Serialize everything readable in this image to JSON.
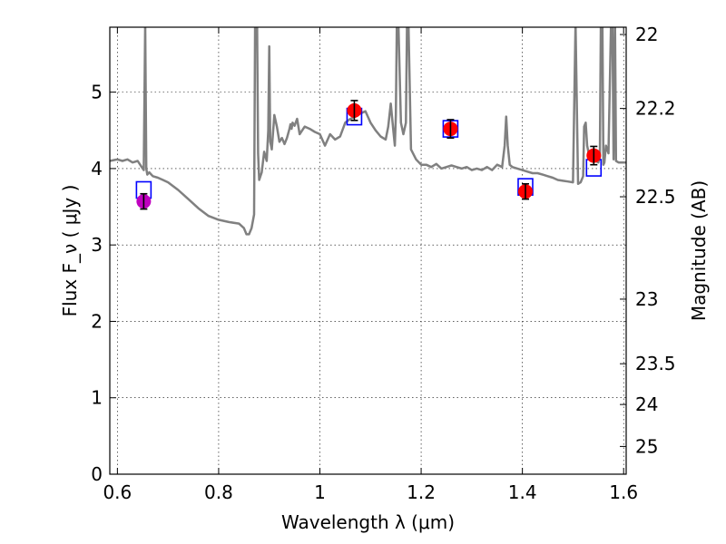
{
  "chart_data": {
    "type": "scatter",
    "xlabel": "Wavelength  λ (μm)",
    "ylabel": "Flux  F_ν  ( μJy )",
    "y2label": "Magnitude (AB)",
    "xlim": [
      0.585,
      1.605
    ],
    "ylim": [
      0,
      5.85
    ],
    "grid": true,
    "x_ticks": [
      0.6,
      0.8,
      1.0,
      1.2,
      1.4,
      1.6
    ],
    "x_tick_labels": [
      "0.6",
      "0.8",
      "1",
      "1.2",
      "1.4",
      "1.6"
    ],
    "y_ticks": [
      0,
      1,
      2,
      3,
      4,
      5
    ],
    "y_tick_labels": [
      "0",
      "1",
      "2",
      "3",
      "4",
      "5"
    ],
    "y2_ticks": [
      22,
      22.2,
      22.5,
      23,
      23.5,
      24,
      25
    ],
    "y2_tick_labels": [
      "22",
      "22.2",
      "22.5",
      "23",
      "23.5",
      "24",
      "25"
    ],
    "colors": {
      "spectrum": "#808080",
      "model_box": "#0000ff",
      "detection": "#ff0000",
      "first_point": "#bf00bf",
      "errorbar": "#000000",
      "grid": "#000000"
    },
    "series": [
      {
        "type": "line",
        "x": [
          0.585,
          0.6,
          0.61,
          0.62,
          0.63,
          0.64,
          0.648,
          0.652,
          0.655,
          0.657,
          0.659,
          0.663,
          0.67,
          0.68,
          0.69,
          0.7,
          0.72,
          0.74,
          0.76,
          0.78,
          0.8,
          0.82,
          0.84,
          0.85,
          0.855,
          0.86,
          0.865,
          0.87,
          0.872,
          0.874,
          0.876,
          0.878,
          0.88,
          0.885,
          0.89,
          0.895,
          0.898,
          0.9,
          0.902,
          0.905,
          0.91,
          0.915,
          0.92,
          0.925,
          0.93,
          0.935,
          0.94,
          0.942,
          0.944,
          0.946,
          0.95,
          0.955,
          0.96,
          0.97,
          0.98,
          0.99,
          1.0,
          1.01,
          1.02,
          1.03,
          1.04,
          1.05,
          1.06,
          1.07,
          1.08,
          1.09,
          1.1,
          1.11,
          1.12,
          1.13,
          1.135,
          1.14,
          1.145,
          1.148,
          1.15,
          1.152,
          1.155,
          1.16,
          1.165,
          1.17,
          1.172,
          1.175,
          1.18,
          1.19,
          1.2,
          1.21,
          1.22,
          1.23,
          1.24,
          1.25,
          1.26,
          1.27,
          1.28,
          1.29,
          1.3,
          1.31,
          1.32,
          1.33,
          1.34,
          1.35,
          1.36,
          1.365,
          1.368,
          1.371,
          1.375,
          1.38,
          1.39,
          1.4,
          1.41,
          1.42,
          1.43,
          1.44,
          1.45,
          1.46,
          1.47,
          1.48,
          1.49,
          1.5,
          1.505,
          1.51,
          1.515,
          1.52,
          1.522,
          1.525,
          1.528,
          1.531,
          1.535,
          1.54,
          1.545,
          1.55,
          1.553,
          1.555,
          1.558,
          1.56,
          1.562,
          1.565,
          1.57,
          1.575,
          1.578,
          1.58,
          1.583,
          1.585,
          1.59,
          1.6,
          1.605
        ],
        "y": [
          4.1,
          4.12,
          4.1,
          4.12,
          4.08,
          4.1,
          4.02,
          3.98,
          5.9,
          4.0,
          3.92,
          3.95,
          3.9,
          3.88,
          3.85,
          3.82,
          3.72,
          3.6,
          3.48,
          3.38,
          3.33,
          3.3,
          3.28,
          3.22,
          3.14,
          3.14,
          3.22,
          3.4,
          5.9,
          5.9,
          5.9,
          4.2,
          3.85,
          3.95,
          4.22,
          4.1,
          4.5,
          5.6,
          4.35,
          4.25,
          4.7,
          4.55,
          4.35,
          4.4,
          4.32,
          4.4,
          4.52,
          4.58,
          4.52,
          4.6,
          4.56,
          4.65,
          4.45,
          4.55,
          4.52,
          4.48,
          4.45,
          4.3,
          4.45,
          4.38,
          4.42,
          4.6,
          4.65,
          4.68,
          4.72,
          4.75,
          4.6,
          4.5,
          4.42,
          4.38,
          4.55,
          4.85,
          4.5,
          4.3,
          4.7,
          5.9,
          5.9,
          4.6,
          4.45,
          4.6,
          5.9,
          5.9,
          4.25,
          4.12,
          4.05,
          4.05,
          4.02,
          4.06,
          4.0,
          4.02,
          4.04,
          4.02,
          4.0,
          4.02,
          3.98,
          4.0,
          3.98,
          4.02,
          3.98,
          4.05,
          4.02,
          4.3,
          4.68,
          4.3,
          4.05,
          4.02,
          4.0,
          3.98,
          3.96,
          3.94,
          3.94,
          3.92,
          3.9,
          3.88,
          3.85,
          3.84,
          3.83,
          3.82,
          5.9,
          3.8,
          3.82,
          3.9,
          4.55,
          4.6,
          4.3,
          4.2,
          4.15,
          4.12,
          4.1,
          4.08,
          4.15,
          5.9,
          5.9,
          4.05,
          4.08,
          4.3,
          4.2,
          5.9,
          5.9,
          4.12,
          5.9,
          4.1,
          4.08,
          4.08,
          4.08
        ]
      },
      {
        "type": "model_boxes",
        "x": [
          0.652,
          1.068,
          1.258,
          1.406,
          1.541
        ],
        "y": [
          3.72,
          4.68,
          4.52,
          3.76,
          4.01
        ]
      },
      {
        "type": "points_with_errors",
        "x": [
          0.652,
          1.068,
          1.258,
          1.406,
          1.541
        ],
        "y": [
          3.57,
          4.76,
          4.52,
          3.7,
          4.17
        ],
        "yerr": [
          0.1,
          0.13,
          0.12,
          0.1,
          0.12
        ]
      }
    ]
  }
}
